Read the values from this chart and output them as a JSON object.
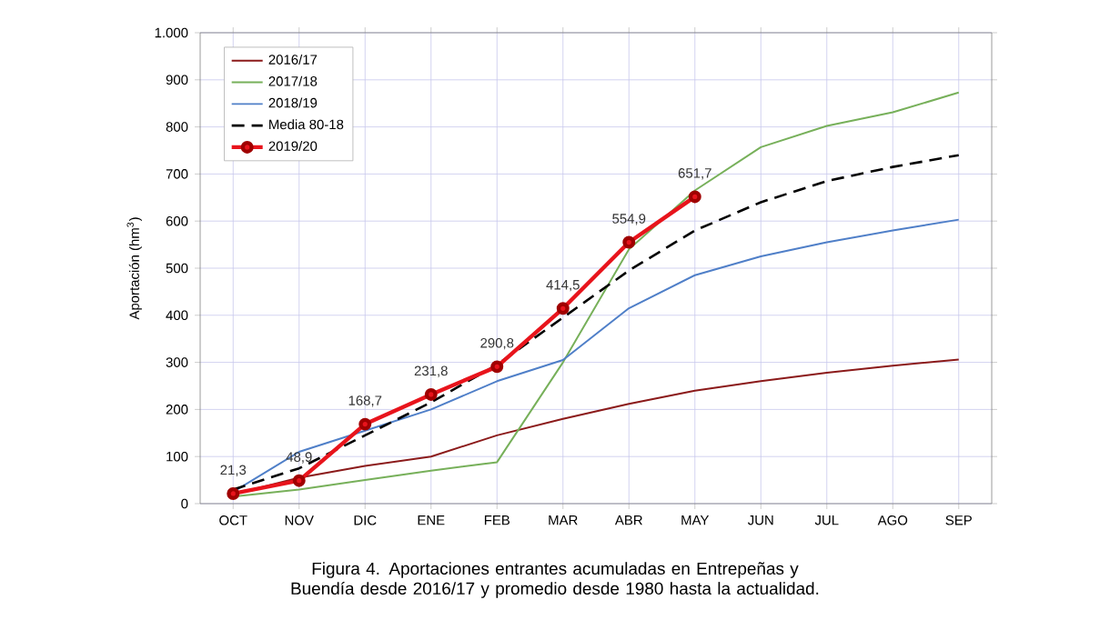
{
  "chart_data": {
    "type": "line",
    "ylabel": "Aportación (hm$^{3}$)",
    "categories": [
      "OCT",
      "NOV",
      "DIC",
      "ENE",
      "FEB",
      "MAR",
      "ABR",
      "MAY",
      "JUN",
      "JUL",
      "AGO",
      "SEP"
    ],
    "ylim": [
      0,
      1000
    ],
    "yticks": [
      0,
      100,
      200,
      300,
      400,
      500,
      600,
      700,
      800,
      900,
      {
        "value": 1000,
        "label": "1.000"
      }
    ],
    "grid": true,
    "legend": "top left",
    "marker": "none",
    "line_style": "solid",
    "series": [
      {
        "name": "2016/17",
        "color": "#8b1a1a",
        "values": [
          20,
          55,
          80,
          100,
          145,
          180,
          212,
          240,
          260,
          278,
          293,
          306
        ]
      },
      {
        "name": "2017/18",
        "color": "#77b05a",
        "values": [
          15,
          30,
          50,
          70,
          88,
          300,
          540,
          665,
          757,
          802,
          831,
          873
        ]
      },
      {
        "name": "2018/19",
        "color": "#4f7fc8",
        "values": [
          25,
          110,
          155,
          200,
          260,
          305,
          415,
          485,
          525,
          555,
          580,
          603
        ]
      },
      {
        "name": "Media 80-18",
        "color": "#000000",
        "line_style": "dashed",
        "values": [
          30,
          75,
          145,
          215,
          295,
          395,
          495,
          580,
          640,
          685,
          715,
          740
        ]
      },
      {
        "name": "2019/20",
        "color": "#e8141c",
        "marker": "circle",
        "values": [
          21.3,
          48.9,
          168.7,
          231.8,
          290.8,
          414.5,
          554.9,
          651.7,
          null,
          null,
          null,
          null
        ],
        "value_labels": [
          "21,3",
          "48,9",
          "168,7",
          "231,8",
          "290,8",
          "414,5",
          "554,9",
          "651,7",
          null,
          null,
          null,
          null
        ]
      }
    ],
    "annotations": [
      "Figura 4. Aportaciones entrantes acumuladas en Entrepeñas y Buendía desde 2016/17 y promedio desde 1980 hasta la actualidad."
    ]
  }
}
